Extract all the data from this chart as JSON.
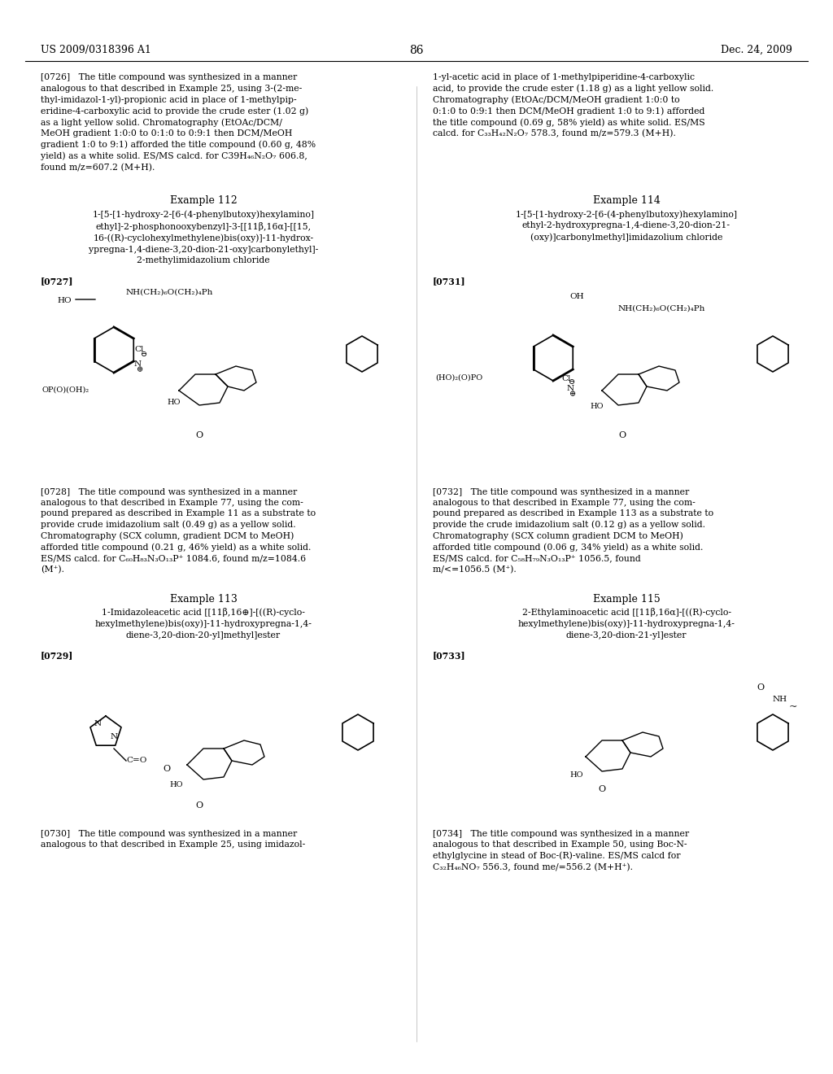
{
  "page_number": "86",
  "patent_number": "US 2009/0318396 A1",
  "patent_date": "Dec. 24, 2009",
  "background_color": "#ffffff",
  "text_color": "#000000",
  "figsize": [
    10.24,
    13.2
  ],
  "dpi": 100,
  "header_left": "US 2009/0318396 A1",
  "header_right": "Dec. 24, 2009",
  "header_center": "86",
  "left_col_texts": [
    {
      "tag": "[0726]",
      "body": "The title compound was synthesized in a manner analogous to that described in Example 25, using 3-(2-methyl-imidazol-1-yl)-propionic acid in place of 1-methylpiperidine-4-carboxylic acid to provide the crude ester (1.02 g) as a light yellow solid. Chromatography (EtOAc/DCM/MeOH gradient 1:0:0 to 0:1:0 to 0:9:1 then DCM/MeOH gradient 1:0 to 9:1) afforded the title compound (0.60 g, 48% yield) as a white solid. ES/MS calcd. for C39H₄₆N₂O₇ 606.8, found m/z=607.2 (M+H)."
    }
  ],
  "right_col_texts": [
    {
      "body": "1-yl-acetic acid in place of 1-methylpiperidine-4-carboxylic acid, to provide the crude ester (1.18 g) as a light yellow solid. Chromatography (EtOAc/DCM/MeOH gradient 1:0:0 to 0:1:0 to 0:9:1 then DCM/MeOH gradient 1:0 to 9:1) afforded the title compound (0.69 g, 58% yield) as white solid. ES/MS calcd. for C₃₃H₄₂N₂O₇ 578.3, found m/z=579.3 (M+H)."
    }
  ],
  "example112_title": "Example 112",
  "example112_name": "1-[5-[1-hydroxy-2-[6-(4-phenylbutoxy)hexylamino]\nethyl]-2-phosphonooxybenzyl]-3-[[11β,16α]-[[15,\n16-((R)-cyclohexylmethylene)bis(oxy)]-11-hydrox-\nypregna-1,4-diene-3,20-dion-21-oxy]carbonylethyl]-\n2-methylimidazolium chloride",
  "para0727": "[0727]",
  "example113_title": "Example 113",
  "example113_name": "1-Imidazoleacetic acid [[11β,16⊕]-[((R)-cyclo-\nhexylmethylene)bis(oxy)]-11-hydroxypregna-1,4-\ndiene-3,20-dion-20-yl]methyl]ester",
  "para0729": "[0729]",
  "para0730_body": "[0730]  The title compound was synthesized in a manner analogous to that described in Example 25, using imidazol-",
  "example114_title": "Example 114",
  "example114_name": "1-[5-[1-hydroxy-2-[6-(4-phenylbutoxy)hexylamino]\nethyl-2-hydroxypregna-1,4-diene-3,20-dion-21-\n(oxy)]carbonylmethyl]imidazolium chloride",
  "para0731": "[0731]",
  "example115_title": "Example 115",
  "example115_name": "2-Ethylaminoacetic acid [[11β,16α]-[((R)-cyclo-\nhexylmethylene)bis(oxy)]-11-hydroxypregna-1,4-\ndiene-3,20-dion-21-yl]ester",
  "para0733": "[0733]",
  "para0732_body": "[0732]  The title compound was synthesized in a manner analogous to that described in Example 77, using the compound prepared as described in Example 113 as a substrate to provide the crude imidazolium salt (0.12 g) as a yellow solid. Chromatography (SCX column gradient DCM to MeOH) afforded title compound (0.06 g, 34% yield) as a white solid. ES/MS calcd. for C₅₈H₇₉N₃O₁₃P⁺ 1056.5, found m/<=1056.5 (M⁺).",
  "para0728_body": "[0728]  The title compound was synthesized in a manner analogous to that described in Example 77, using the compound prepared as described in Example 11 as a substrate to provide crude imidazolium salt (0.49 g) as a yellow solid. Chromatography (SCX column, gradient DCM to MeOH) afforded title compound (0.21 g, 46% yield) as a white solid. ES/MS calcd. for C₆₀H₈₃N₃O₁₃P⁺ 1084.6, found m/z=1084.6 (M⁺).",
  "para0734_body": "[0734]  The title compound was synthesized in a manner analogous to that described in Example 50, using Boc-N-ethylglycine in stead of Boc-(R)-valine. ES/MS calcd for C₃₂H₄₆NO₇ 556.3, found me/=556.2 (M+H⁺)."
}
